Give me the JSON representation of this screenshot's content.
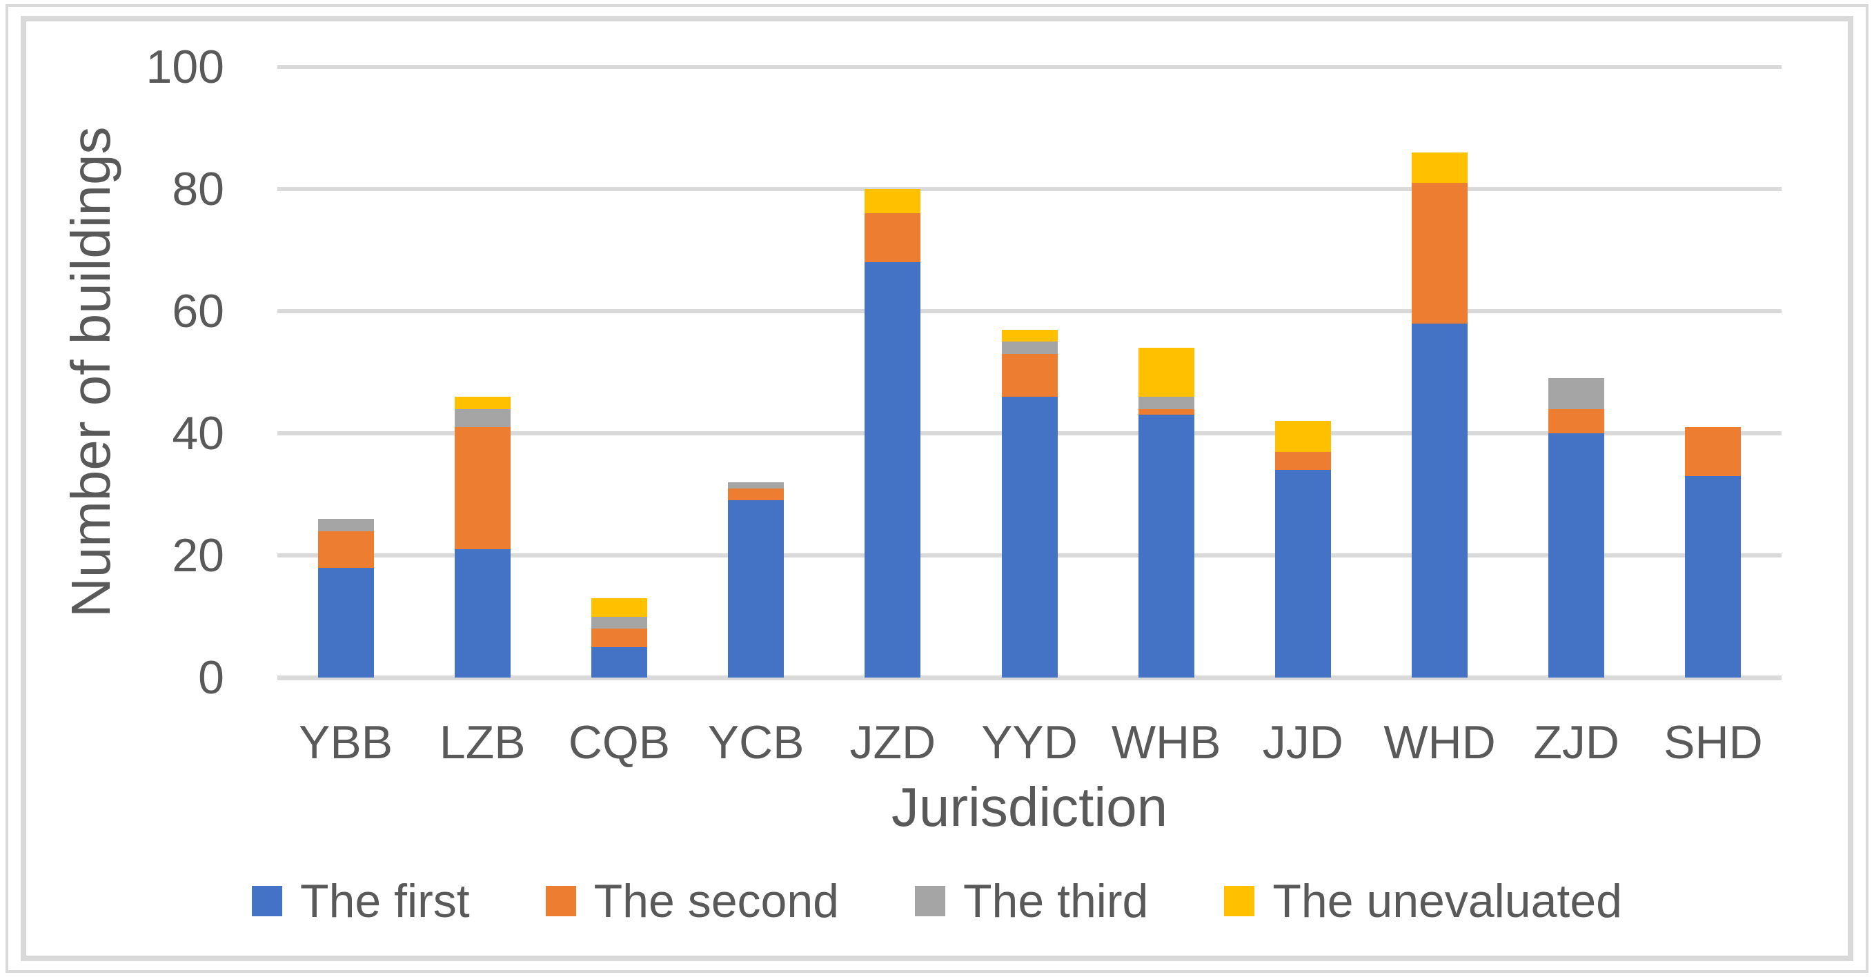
{
  "figure": {
    "background": "#FFFFFF",
    "outer_border_color": "#D9D9D9",
    "frame_border_color": "#D9D9D9",
    "gridline_color": "#D9D9D9",
    "text_color": "#595959"
  },
  "chart_data": {
    "type": "bar",
    "stacked": true,
    "xlabel": "Jurisdiction",
    "ylabel": "Number of buildings",
    "ylim": [
      0,
      100
    ],
    "yticks": [
      0,
      20,
      40,
      60,
      80,
      100
    ],
    "grid": "horizontal",
    "legend_position": "bottom",
    "categories": [
      "YBB",
      "LZB",
      "CQB",
      "YCB",
      "JZD",
      "YYD",
      "WHB",
      "JJD",
      "WHD",
      "ZJD",
      "SHD"
    ],
    "series": [
      {
        "name": "The first",
        "color": "#4472C4",
        "values": [
          18,
          21,
          5,
          29,
          68,
          46,
          43,
          34,
          58,
          40,
          33
        ]
      },
      {
        "name": "The second",
        "color": "#ED7D31",
        "values": [
          6,
          20,
          3,
          2,
          8,
          7,
          1,
          3,
          23,
          4,
          8
        ]
      },
      {
        "name": "The third",
        "color": "#A5A5A5",
        "values": [
          2,
          3,
          2,
          1,
          0,
          2,
          2,
          0,
          0,
          5,
          0
        ]
      },
      {
        "name": "The unevaluated",
        "color": "#FFC000",
        "values": [
          0,
          2,
          3,
          0,
          4,
          2,
          8,
          5,
          5,
          0,
          0
        ]
      }
    ]
  }
}
